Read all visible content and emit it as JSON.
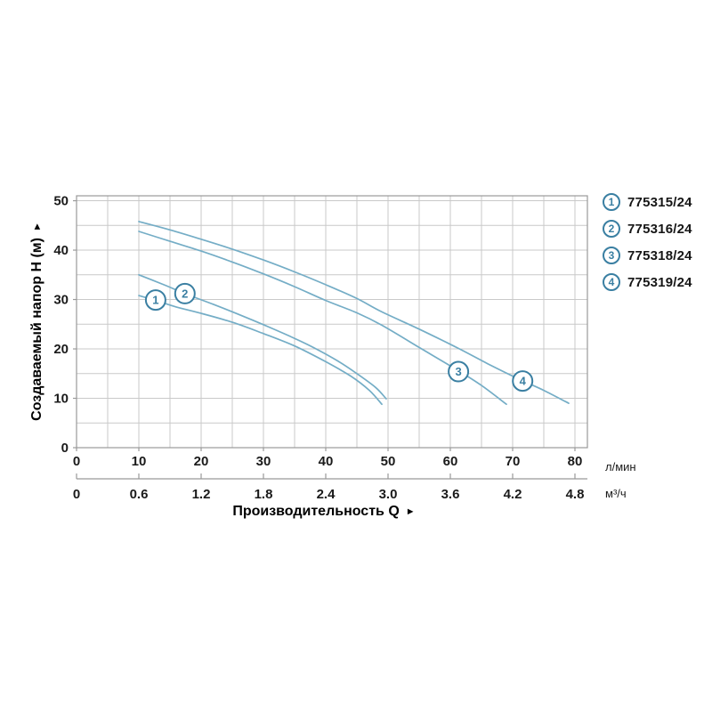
{
  "legend": {
    "items": [
      {
        "num": "1",
        "label": "775315/24"
      },
      {
        "num": "2",
        "label": "775316/24"
      },
      {
        "num": "3",
        "label": "775318/24"
      },
      {
        "num": "4",
        "label": "775319/24"
      }
    ]
  },
  "chart_data": {
    "type": "line",
    "title": "",
    "xlabel": "Производительность Q",
    "xlabel_arrow": "►",
    "ylabel": "Создаваемый напор H (м)",
    "ylabel_arrow": "▲",
    "x_axis_primary": {
      "unit": "л/мин",
      "tick_values": [
        0,
        10,
        20,
        30,
        40,
        50,
        60,
        70,
        80
      ]
    },
    "x_axis_secondary": {
      "unit": "м³/ч",
      "tick_labels": [
        "0",
        "0.6",
        "1.2",
        "1.8",
        "2.4",
        "3.0",
        "3.6",
        "4.2",
        "4.8"
      ]
    },
    "y_axis": {
      "tick_values": [
        0,
        10,
        20,
        30,
        40,
        50
      ]
    },
    "xlim": [
      0,
      82
    ],
    "ylim": [
      0,
      51
    ],
    "grid": {
      "on": true,
      "step_x": 5,
      "step_y": 5
    },
    "legend_position": "top-right",
    "series": [
      {
        "id": "1",
        "name": "775315/24",
        "points": [
          [
            10,
            30.8
          ],
          [
            13,
            29.7
          ],
          [
            16,
            28.5
          ],
          [
            20,
            27.2
          ],
          [
            25,
            25.4
          ],
          [
            30,
            23.1
          ],
          [
            35,
            20.6
          ],
          [
            40,
            17.4
          ],
          [
            44,
            14.5
          ],
          [
            47,
            11.6
          ],
          [
            49,
            8.8
          ]
        ]
      },
      {
        "id": "2",
        "name": "775316/24",
        "points": [
          [
            10,
            35.0
          ],
          [
            14,
            33.0
          ],
          [
            18,
            30.9
          ],
          [
            22,
            29.0
          ],
          [
            26,
            27.0
          ],
          [
            30,
            24.9
          ],
          [
            34,
            22.7
          ],
          [
            38,
            20.3
          ],
          [
            42,
            17.5
          ],
          [
            45,
            15.0
          ],
          [
            48,
            12.2
          ],
          [
            49.7,
            9.9
          ]
        ]
      },
      {
        "id": "3",
        "name": "775318/24",
        "points": [
          [
            10,
            43.8
          ],
          [
            15,
            41.8
          ],
          [
            20,
            39.8
          ],
          [
            25,
            37.6
          ],
          [
            30,
            35.2
          ],
          [
            35,
            32.6
          ],
          [
            40,
            29.8
          ],
          [
            45,
            27.3
          ],
          [
            49,
            24.8
          ],
          [
            55,
            20.3
          ],
          [
            61,
            15.8
          ],
          [
            65,
            12.6
          ],
          [
            69,
            8.8
          ]
        ]
      },
      {
        "id": "4",
        "name": "775319/24",
        "points": [
          [
            10,
            45.8
          ],
          [
            15,
            44.1
          ],
          [
            20,
            42.2
          ],
          [
            25,
            40.2
          ],
          [
            30,
            38.0
          ],
          [
            35,
            35.6
          ],
          [
            40,
            33.0
          ],
          [
            45,
            30.2
          ],
          [
            49,
            27.5
          ],
          [
            55,
            24.0
          ],
          [
            61,
            20.3
          ],
          [
            66,
            17.0
          ],
          [
            71,
            13.9
          ],
          [
            75,
            11.6
          ],
          [
            79,
            9.0
          ]
        ]
      }
    ],
    "badges": [
      {
        "id": "1",
        "q": 12.7,
        "h": 29.9
      },
      {
        "id": "2",
        "q": 17.4,
        "h": 31.2
      },
      {
        "id": "3",
        "q": 61.3,
        "h": 15.4
      },
      {
        "id": "4",
        "q": 71.6,
        "h": 13.5
      }
    ],
    "colors": {
      "curve": "#74adc6",
      "badge": "#3a7fa2",
      "grid": "#c9c9c9",
      "axis": "#999999",
      "text": "#1a1a1a"
    }
  }
}
